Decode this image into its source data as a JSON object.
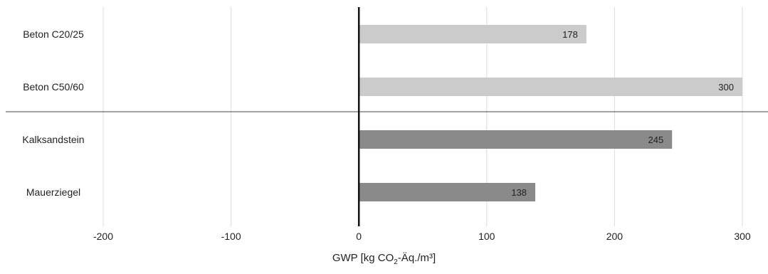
{
  "chart_data": {
    "type": "bar",
    "orientation": "horizontal",
    "categories": [
      "Beton C20/25",
      "Beton C50/60",
      "Kalksandstein",
      "Mauerziegel"
    ],
    "values": [
      178,
      300,
      245,
      138
    ],
    "data_labels": [
      "178",
      "300",
      "245",
      "138"
    ],
    "colors": [
      "#cbcbcb",
      "#cbcbcb",
      "#8a8a8a",
      "#8a8a8a"
    ],
    "xlim": [
      -200,
      300
    ],
    "xticks": [
      -200,
      -100,
      0,
      100,
      200,
      300
    ],
    "xtick_labels": [
      "-200",
      "-100",
      "0",
      "100",
      "200",
      "300"
    ],
    "x_axis_label": {
      "before_sub": "GWP [kg CO",
      "sub": "2",
      "after_sub": "-Äq./m³]"
    },
    "grid": "vertical",
    "group_separator_after": "Beton C50/60"
  }
}
